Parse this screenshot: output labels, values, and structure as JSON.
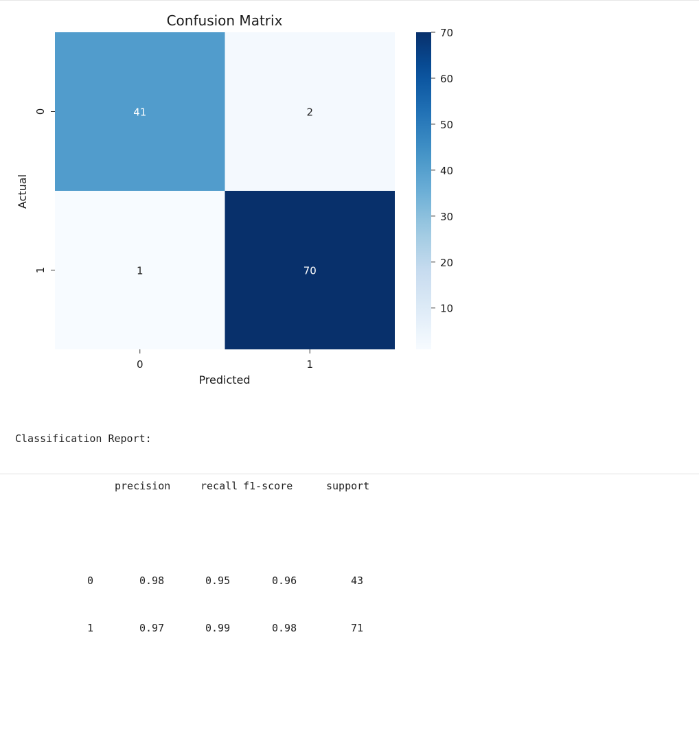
{
  "chart_data": {
    "type": "heatmap",
    "title": "Confusion Matrix",
    "xlabel": "Predicted",
    "ylabel": "Actual",
    "x_tick_labels": [
      "0",
      "1"
    ],
    "y_tick_labels": [
      "0",
      "1"
    ],
    "matrix": [
      [
        41,
        2
      ],
      [
        1,
        70
      ]
    ],
    "annotations": [
      [
        "41",
        "2"
      ],
      [
        "1",
        "70"
      ]
    ],
    "colormap": "Blues",
    "colorbar": {
      "range": [
        1,
        70
      ],
      "ticks": [
        10,
        20,
        30,
        40,
        50,
        60,
        70
      ],
      "tick_labels": [
        "10",
        "20",
        "30",
        "40",
        "50",
        "60",
        "70"
      ]
    },
    "colors": {
      "low": "#f7fbff",
      "high": "#08306b"
    },
    "grid": false
  },
  "report": {
    "heading": "Classification Report:",
    "columns": [
      "precision",
      "recall",
      "f1-score",
      "support"
    ],
    "rows": [
      {
        "label": "0",
        "precision": "0.98",
        "recall": "0.95",
        "f1": "0.96",
        "support": "43"
      },
      {
        "label": "1",
        "precision": "0.97",
        "recall": "0.99",
        "f1": "0.98",
        "support": "71"
      }
    ]
  }
}
